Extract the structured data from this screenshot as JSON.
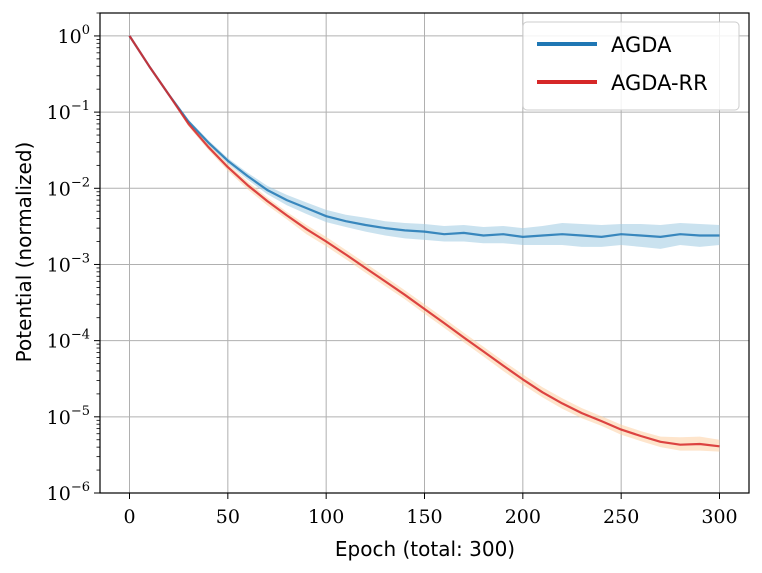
{
  "chart_data": {
    "type": "line",
    "title": "",
    "xlabel": "Epoch (total: 300)",
    "ylabel": "Potential (normalized)",
    "xlim": [
      -15,
      315
    ],
    "ylim": [
      1e-06,
      2
    ],
    "yscale": "log",
    "grid": true,
    "legend": "top-right",
    "xticks": [
      "0",
      "50",
      "100",
      "150",
      "200",
      "250",
      "300"
    ],
    "yticks": [
      {
        "base": "10",
        "exp": "0"
      },
      {
        "base": "10",
        "exp": "−1"
      },
      {
        "base": "10",
        "exp": "−2"
      },
      {
        "base": "10",
        "exp": "−3"
      },
      {
        "base": "10",
        "exp": "−4"
      },
      {
        "base": "10",
        "exp": "−5"
      },
      {
        "base": "10",
        "exp": "−6"
      }
    ],
    "series": [
      {
        "name": "AGDA",
        "color": "#1f77b4",
        "band_color": "#9ecae1",
        "x": [
          0,
          10,
          20,
          30,
          40,
          50,
          60,
          70,
          80,
          90,
          100,
          110,
          120,
          130,
          140,
          150,
          160,
          170,
          180,
          190,
          200,
          210,
          220,
          230,
          240,
          250,
          260,
          270,
          280,
          290,
          300
        ],
        "y": [
          1.0,
          0.4,
          0.17,
          0.075,
          0.04,
          0.023,
          0.0145,
          0.0095,
          0.007,
          0.0055,
          0.0043,
          0.0037,
          0.0033,
          0.003,
          0.0028,
          0.0027,
          0.0025,
          0.0026,
          0.0024,
          0.0025,
          0.0023,
          0.0024,
          0.0025,
          0.0024,
          0.0023,
          0.0025,
          0.0024,
          0.0023,
          0.0025,
          0.0024,
          0.0024
        ],
        "upper": [
          1.0,
          0.42,
          0.18,
          0.08,
          0.043,
          0.025,
          0.016,
          0.0108,
          0.0082,
          0.0065,
          0.0052,
          0.0045,
          0.0041,
          0.0037,
          0.0035,
          0.0034,
          0.0032,
          0.0033,
          0.0031,
          0.0032,
          0.003,
          0.0032,
          0.0035,
          0.0034,
          0.0033,
          0.0034,
          0.0034,
          0.0033,
          0.0035,
          0.0034,
          0.0033
        ],
        "lower": [
          1.0,
          0.38,
          0.16,
          0.07,
          0.037,
          0.021,
          0.013,
          0.0084,
          0.006,
          0.0046,
          0.0036,
          0.0031,
          0.0027,
          0.0024,
          0.0022,
          0.0021,
          0.002,
          0.002,
          0.0019,
          0.0019,
          0.0018,
          0.0018,
          0.0018,
          0.0017,
          0.0017,
          0.0018,
          0.0017,
          0.0016,
          0.0018,
          0.0017,
          0.0018
        ]
      },
      {
        "name": "AGDA-RR",
        "color": "#d62728",
        "band_color": "#fdd0a2",
        "x": [
          0,
          10,
          20,
          30,
          40,
          50,
          60,
          70,
          80,
          90,
          100,
          110,
          120,
          130,
          140,
          150,
          160,
          170,
          180,
          190,
          200,
          210,
          220,
          230,
          240,
          250,
          260,
          270,
          280,
          290,
          300
        ],
        "y": [
          1.0,
          0.4,
          0.17,
          0.07,
          0.035,
          0.019,
          0.011,
          0.0068,
          0.0044,
          0.0029,
          0.002,
          0.00135,
          0.0009,
          0.0006,
          0.0004,
          0.00026,
          0.00017,
          0.00011,
          7.2e-05,
          4.7e-05,
          3.1e-05,
          2.1e-05,
          1.5e-05,
          1.12e-05,
          8.8e-06,
          6.8e-06,
          5.6e-06,
          4.7e-06,
          4.3e-06,
          4.4e-06,
          4.1e-06
        ],
        "upper": [
          1.0,
          0.41,
          0.175,
          0.075,
          0.038,
          0.021,
          0.0123,
          0.0076,
          0.0049,
          0.0033,
          0.0023,
          0.00155,
          0.00104,
          0.00069,
          0.00046,
          0.0003,
          0.000196,
          0.000127,
          8.3e-05,
          5.4e-05,
          3.6e-05,
          2.45e-05,
          1.75e-05,
          1.3e-05,
          1.02e-05,
          7.9e-06,
          6.5e-06,
          5.5e-06,
          5.4e-06,
          5.5e-06,
          5e-06
        ],
        "lower": [
          1.0,
          0.39,
          0.165,
          0.065,
          0.032,
          0.017,
          0.0097,
          0.006,
          0.0039,
          0.0025,
          0.00173,
          0.00117,
          0.00078,
          0.00052,
          0.00035,
          0.000225,
          0.000147,
          9.5e-05,
          6.2e-05,
          4e-05,
          2.65e-05,
          1.8e-05,
          1.28e-05,
          9.6e-06,
          7.6e-06,
          5.8e-06,
          4.8e-06,
          4e-06,
          3.6e-06,
          3.6e-06,
          3.5e-06
        ]
      }
    ]
  }
}
